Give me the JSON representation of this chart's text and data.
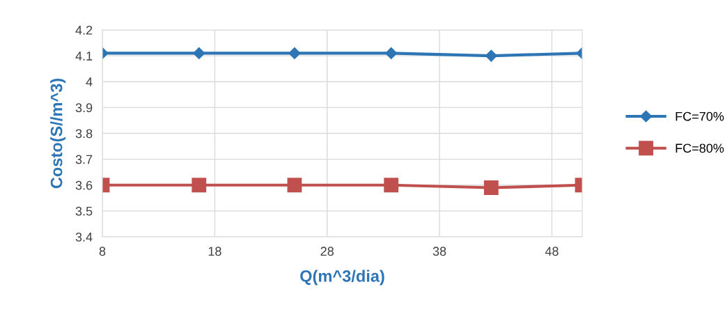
{
  "chart_data": {
    "type": "line",
    "xlabel": "Q(m^3/dia)",
    "ylabel": "Costo(S//m^3)",
    "x": [
      8,
      16.6,
      25.1,
      33.7,
      42.6,
      50.7
    ],
    "series": [
      {
        "name": "FC=70%",
        "color": "#2e75b6",
        "marker": "diamond",
        "values": [
          4.11,
          4.11,
          4.11,
          4.11,
          4.1,
          4.11
        ]
      },
      {
        "name": "FC=80%",
        "color": "#c0504d",
        "marker": "square",
        "values": [
          3.6,
          3.6,
          3.6,
          3.6,
          3.59,
          3.6
        ]
      }
    ],
    "xlim": [
      8,
      50.7
    ],
    "xticks": [
      8,
      18,
      28,
      38,
      48
    ],
    "ylim": [
      3.4,
      4.2
    ],
    "yticks": [
      3.4,
      3.5,
      3.6,
      3.7,
      3.8,
      3.9,
      {
        "value": 4.0,
        "label": "4"
      },
      4.1,
      4.2
    ],
    "grid": true,
    "legend": "right"
  }
}
